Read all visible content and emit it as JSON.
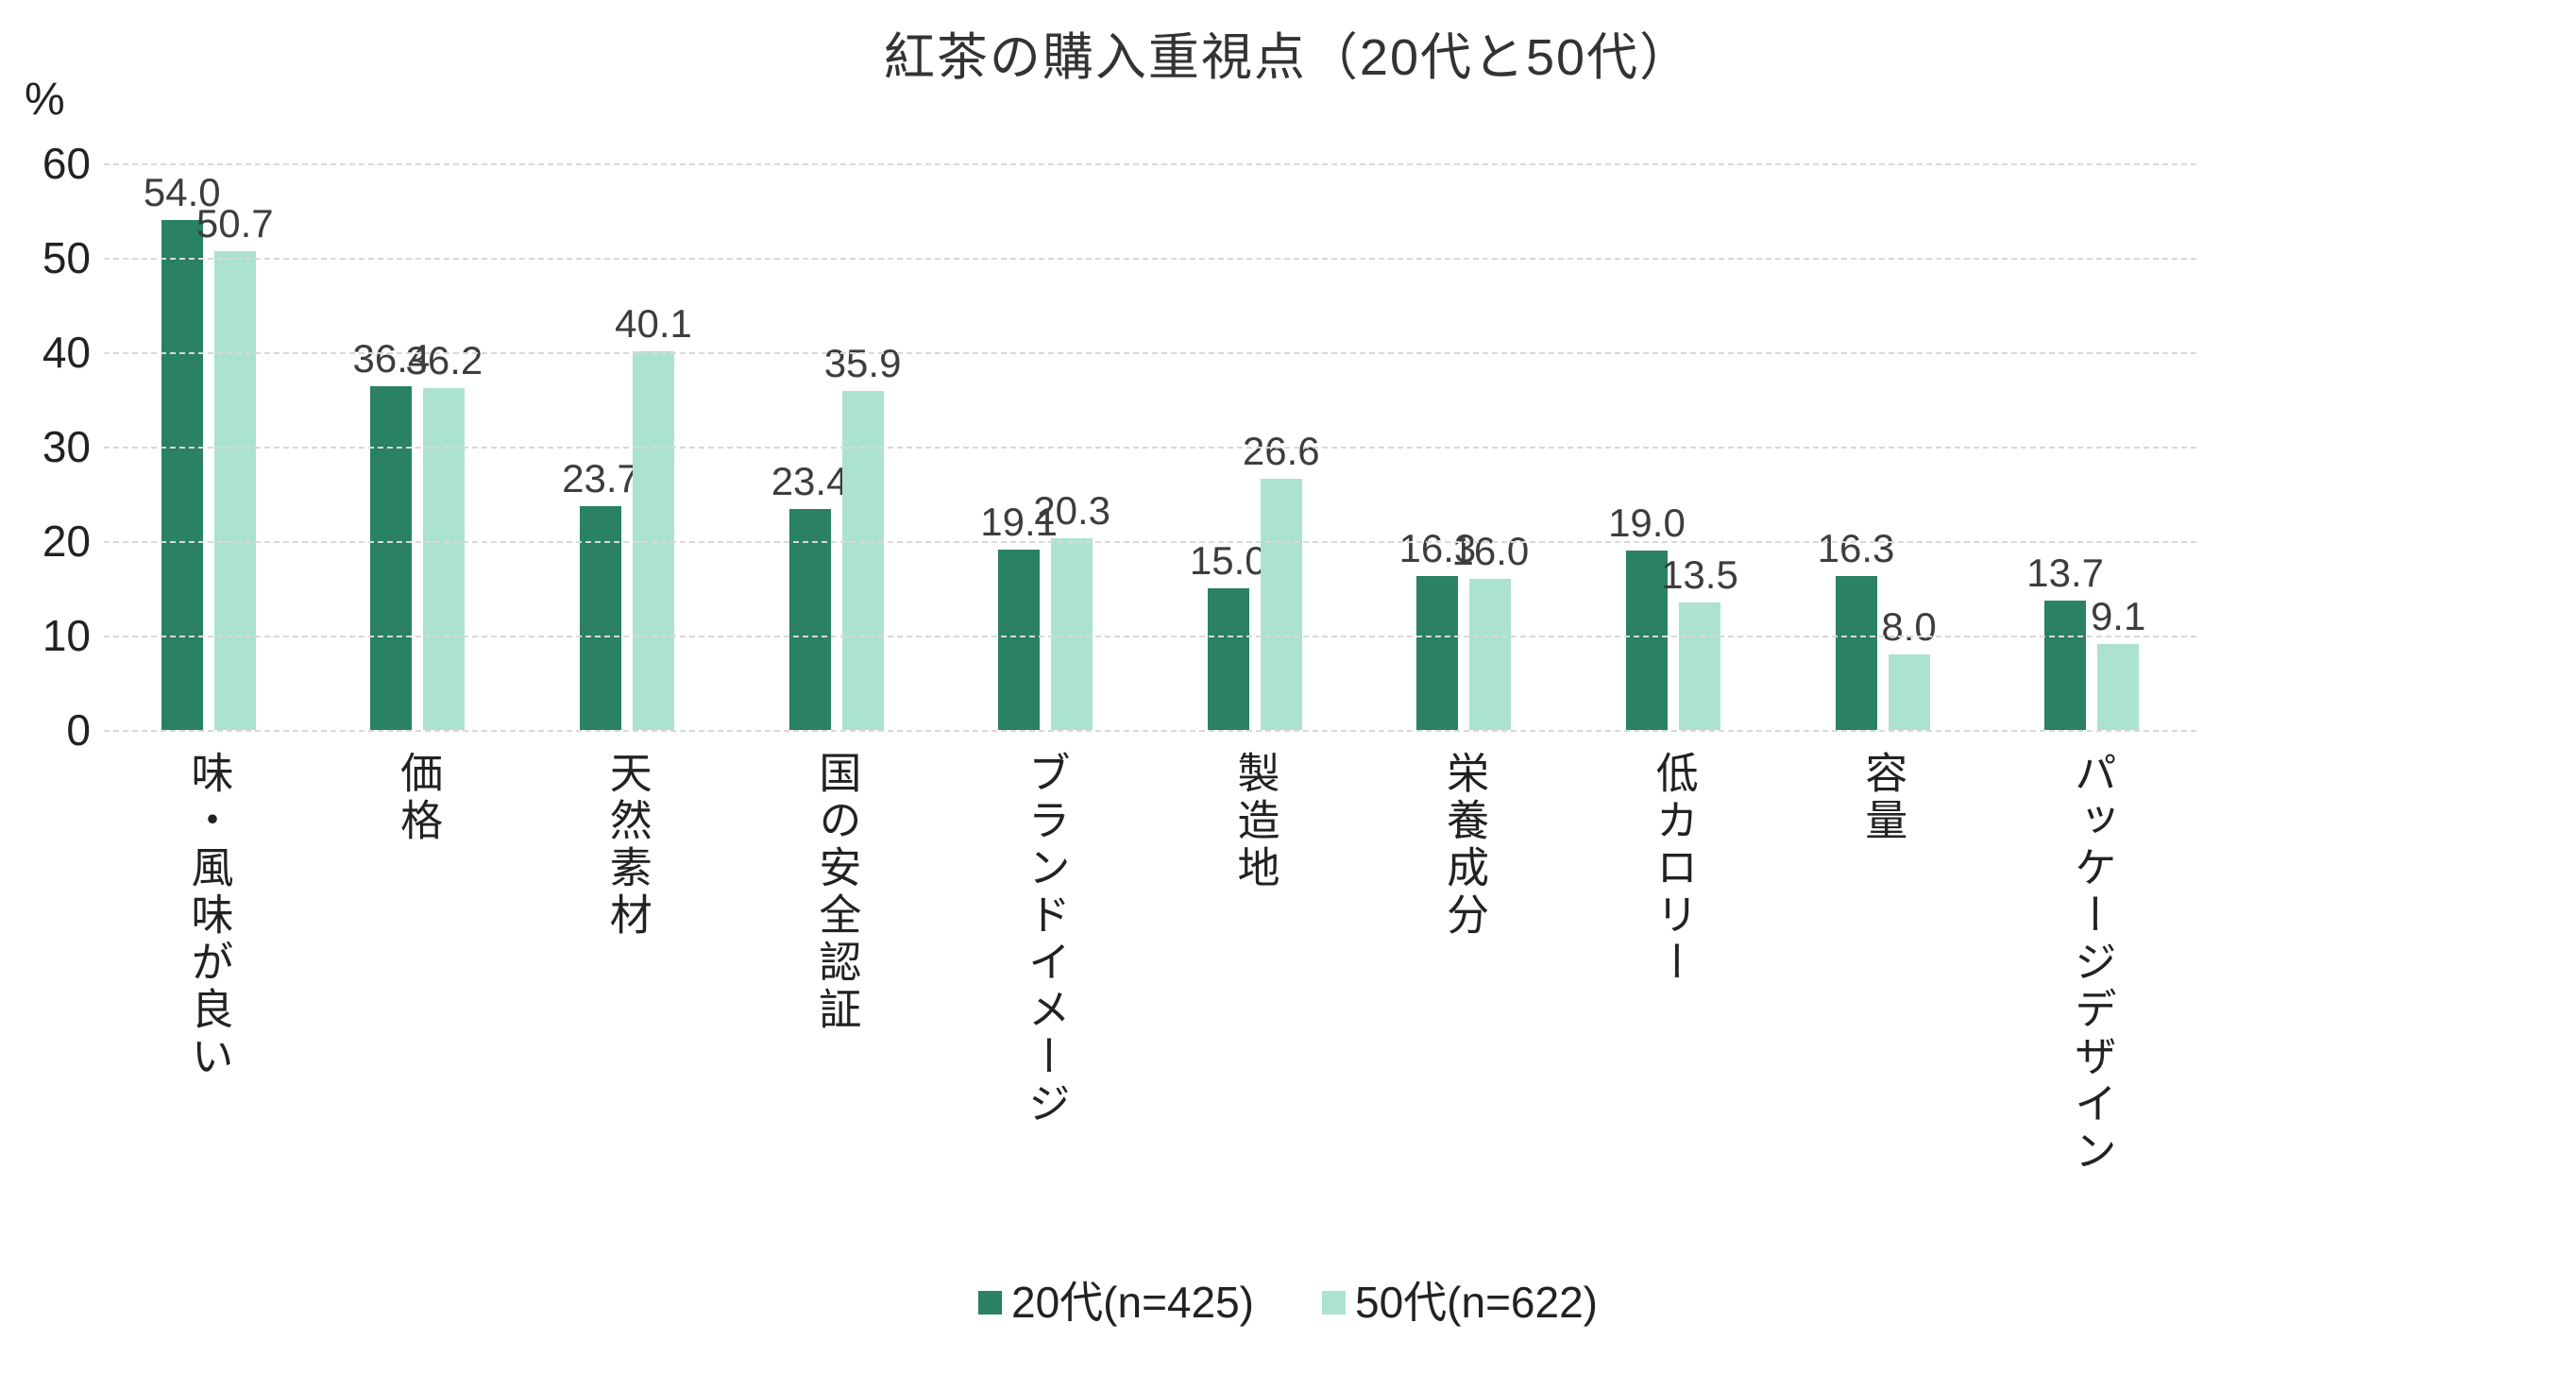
{
  "chart_data": {
    "type": "bar",
    "title": "紅茶の購入重視点（20代と50代）",
    "ylabel": "%",
    "categories": [
      "味・風味が良い",
      "価格",
      "天然素材",
      "国の安全認証",
      "ブランドイメージ",
      "製造地",
      "栄養成分",
      "低カロリー",
      "容量",
      "パッケージデザイン"
    ],
    "series": [
      {
        "name": "20代(n=425)",
        "color": "#2A8164",
        "values": [
          54.0,
          36.4,
          23.7,
          23.4,
          19.1,
          15.0,
          16.3,
          19.0,
          16.3,
          13.7
        ]
      },
      {
        "name": "50代(n=622)",
        "color": "#ACE3CE",
        "values": [
          50.7,
          36.2,
          40.1,
          35.9,
          20.3,
          26.6,
          16.0,
          13.5,
          8.0,
          9.1
        ]
      }
    ],
    "ylim": [
      0,
      60
    ],
    "yticks": [
      60,
      50,
      40,
      30,
      20,
      10,
      0
    ],
    "value_label_decimals": 1,
    "grid": true,
    "gridline_color": "#d9d9d9",
    "value_label_color": "#3d3d3d",
    "legend_position": "bottom"
  }
}
